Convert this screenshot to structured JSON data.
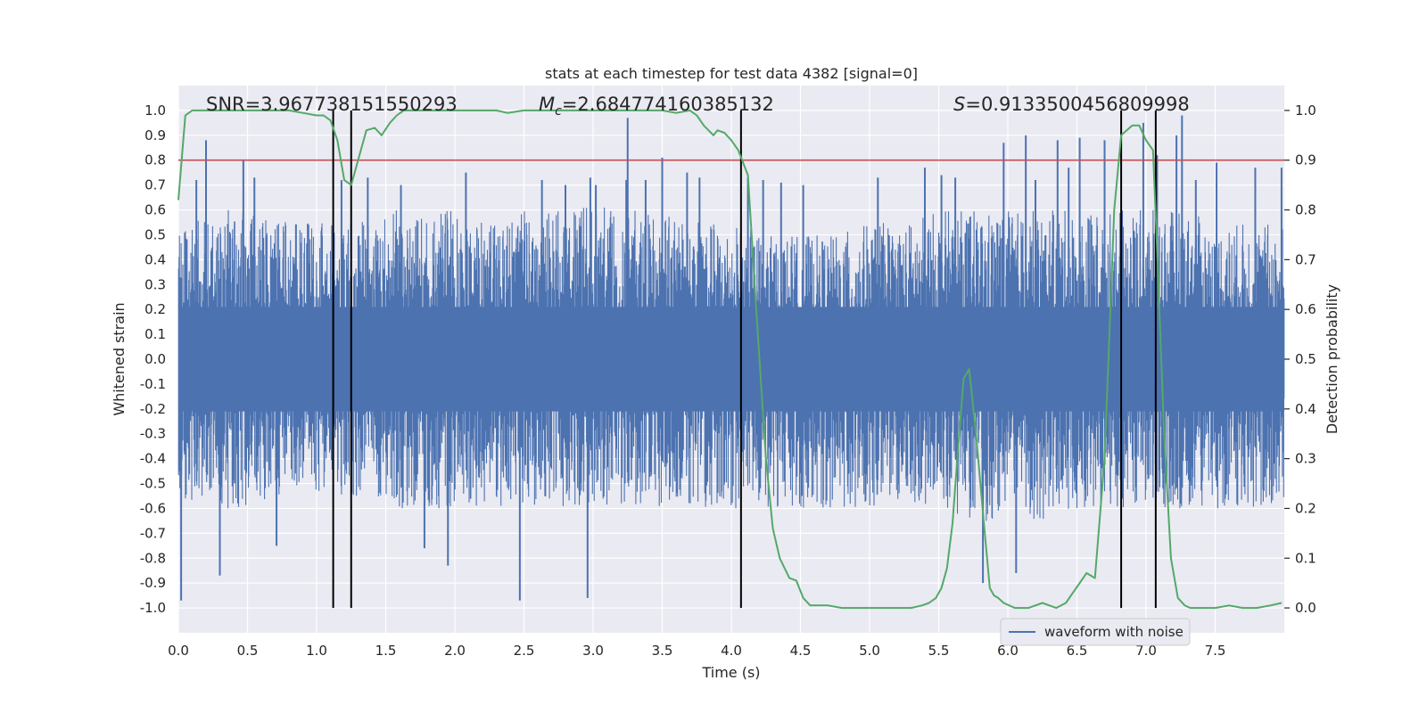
{
  "chart_data": {
    "type": "line",
    "title": "stats at each timestep for test data 4382 [signal=0]",
    "xlabel": "Time (s)",
    "ylabel": "Whitened strain",
    "y2label": "Detection probability",
    "xlim": [
      0.0,
      8.0
    ],
    "ylim": [
      -1.1,
      1.1
    ],
    "y2lim": [
      -0.05,
      1.05
    ],
    "x_ticks": [
      0.0,
      0.5,
      1.0,
      1.5,
      2.0,
      2.5,
      3.0,
      3.5,
      4.0,
      4.5,
      5.0,
      5.5,
      6.0,
      6.5,
      7.0,
      7.5
    ],
    "x_tick_labels": [
      "0.0",
      "0.5",
      "1.0",
      "1.5",
      "2.0",
      "2.5",
      "3.0",
      "3.5",
      "4.0",
      "4.5",
      "5.0",
      "5.5",
      "6.0",
      "6.5",
      "7.0",
      "7.5"
    ],
    "y_ticks": [
      -1.0,
      -0.9,
      -0.8,
      -0.7,
      -0.6,
      -0.5,
      -0.4,
      -0.3,
      -0.2,
      -0.1,
      0.0,
      0.1,
      0.2,
      0.3,
      0.4,
      0.5,
      0.6,
      0.7,
      0.8,
      0.9,
      1.0
    ],
    "y_tick_labels": [
      "-1.0",
      "-0.9",
      "-0.8",
      "-0.7",
      "-0.6",
      "-0.5",
      "-0.4",
      "-0.3",
      "-0.2",
      "-0.1",
      "0.0",
      "0.1",
      "0.2",
      "0.3",
      "0.4",
      "0.5",
      "0.6",
      "0.7",
      "0.8",
      "0.9",
      "1.0"
    ],
    "y2_ticks": [
      0.0,
      0.1,
      0.2,
      0.3,
      0.4,
      0.5,
      0.6,
      0.7,
      0.8,
      0.9,
      1.0
    ],
    "y2_tick_labels": [
      "0.0",
      "0.1",
      "0.2",
      "0.3",
      "0.4",
      "0.5",
      "0.6",
      "0.7",
      "0.8",
      "0.9",
      "1.0"
    ],
    "grid": true,
    "annotations": {
      "snr": "SNR=3.967738151550293",
      "mc_symbol": "M",
      "mc_sub": "c",
      "mc_value": "=2.684774160385132",
      "s_symbol": "S",
      "s_value": "=0.9133500456809998"
    },
    "threshold": {
      "value": 0.9,
      "axis": "right",
      "color": "#c44e52"
    },
    "vertical_lines": [
      1.12,
      1.25,
      4.07,
      6.82,
      7.07
    ],
    "legend": {
      "placement": "lower-right",
      "entries": [
        "waveform with noise"
      ]
    },
    "colors": {
      "strain": "#4c72b0",
      "probability": "#55a868",
      "threshold": "#c44e52",
      "vlines": "#000000",
      "axes_bg": "#eaeaf2"
    },
    "series": [
      {
        "name": "waveform with noise",
        "axis": "left",
        "kind": "dense-noise",
        "core_amplitude": 0.21,
        "envelope_pos": [
          [
            0.0,
            0.5
          ],
          [
            0.25,
            0.6
          ],
          [
            0.5,
            0.6
          ],
          [
            0.75,
            0.55
          ],
          [
            1.0,
            0.56
          ],
          [
            1.25,
            0.55
          ],
          [
            1.5,
            0.6
          ],
          [
            1.75,
            0.6
          ],
          [
            2.0,
            0.6
          ],
          [
            2.25,
            0.55
          ],
          [
            2.5,
            0.6
          ],
          [
            2.75,
            0.6
          ],
          [
            3.0,
            0.62
          ],
          [
            3.25,
            0.6
          ],
          [
            3.5,
            0.6
          ],
          [
            3.75,
            0.55
          ],
          [
            4.0,
            0.55
          ],
          [
            4.25,
            0.5
          ],
          [
            4.5,
            0.5
          ],
          [
            4.75,
            0.5
          ],
          [
            5.0,
            0.55
          ],
          [
            5.25,
            0.55
          ],
          [
            5.5,
            0.6
          ],
          [
            5.75,
            0.6
          ],
          [
            6.0,
            0.6
          ],
          [
            6.25,
            0.6
          ],
          [
            6.5,
            0.6
          ],
          [
            6.75,
            0.6
          ],
          [
            7.0,
            0.6
          ],
          [
            7.25,
            0.6
          ],
          [
            7.5,
            0.55
          ],
          [
            7.75,
            0.55
          ],
          [
            8.0,
            0.55
          ]
        ],
        "envelope_neg": [
          [
            0.0,
            -0.55
          ],
          [
            0.25,
            -0.6
          ],
          [
            0.5,
            -0.6
          ],
          [
            0.75,
            -0.55
          ],
          [
            1.0,
            -0.55
          ],
          [
            1.25,
            -0.55
          ],
          [
            1.5,
            -0.6
          ],
          [
            1.75,
            -0.6
          ],
          [
            2.0,
            -0.6
          ],
          [
            2.25,
            -0.6
          ],
          [
            2.5,
            -0.6
          ],
          [
            2.75,
            -0.6
          ],
          [
            3.0,
            -0.6
          ],
          [
            3.25,
            -0.6
          ],
          [
            3.5,
            -0.6
          ],
          [
            3.75,
            -0.6
          ],
          [
            4.0,
            -0.6
          ],
          [
            4.25,
            -0.6
          ],
          [
            4.5,
            -0.6
          ],
          [
            4.75,
            -0.6
          ],
          [
            5.0,
            -0.6
          ],
          [
            5.25,
            -0.6
          ],
          [
            5.5,
            -0.6
          ],
          [
            5.75,
            -0.65
          ],
          [
            6.0,
            -0.65
          ],
          [
            6.25,
            -0.65
          ],
          [
            6.5,
            -0.6
          ],
          [
            6.75,
            -0.6
          ],
          [
            7.0,
            -0.6
          ],
          [
            7.25,
            -0.6
          ],
          [
            7.5,
            -0.6
          ],
          [
            7.75,
            -0.6
          ],
          [
            8.0,
            -0.6
          ]
        ],
        "spikes": [
          [
            0.02,
            -0.97
          ],
          [
            0.13,
            0.72
          ],
          [
            0.2,
            0.88
          ],
          [
            0.3,
            -0.87
          ],
          [
            0.47,
            0.8
          ],
          [
            0.55,
            0.73
          ],
          [
            0.71,
            -0.75
          ],
          [
            1.18,
            0.72
          ],
          [
            1.37,
            0.73
          ],
          [
            1.61,
            0.7
          ],
          [
            1.78,
            -0.76
          ],
          [
            1.95,
            -0.83
          ],
          [
            2.08,
            0.75
          ],
          [
            2.47,
            -0.97
          ],
          [
            2.63,
            0.72
          ],
          [
            2.8,
            0.7
          ],
          [
            2.96,
            -0.96
          ],
          [
            2.98,
            0.73
          ],
          [
            3.02,
            0.7
          ],
          [
            3.24,
            0.72
          ],
          [
            3.25,
            0.97
          ],
          [
            3.38,
            0.72
          ],
          [
            3.5,
            0.81
          ],
          [
            3.68,
            0.75
          ],
          [
            3.77,
            0.73
          ],
          [
            4.12,
            0.73
          ],
          [
            4.23,
            0.72
          ],
          [
            4.36,
            0.71
          ],
          [
            4.52,
            0.7
          ],
          [
            5.06,
            0.73
          ],
          [
            5.4,
            0.77
          ],
          [
            5.52,
            0.74
          ],
          [
            5.62,
            0.73
          ],
          [
            5.82,
            -0.9
          ],
          [
            5.97,
            0.87
          ],
          [
            6.06,
            -0.86
          ],
          [
            6.13,
            0.9
          ],
          [
            6.2,
            0.72
          ],
          [
            6.36,
            0.88
          ],
          [
            6.44,
            0.77
          ],
          [
            6.52,
            0.89
          ],
          [
            6.7,
            0.88
          ],
          [
            6.98,
            0.95
          ],
          [
            7.08,
            0.82
          ],
          [
            7.22,
            0.9
          ],
          [
            7.26,
            0.98
          ],
          [
            7.36,
            0.72
          ],
          [
            7.51,
            0.79
          ],
          [
            7.79,
            0.77
          ],
          [
            7.98,
            0.77
          ]
        ]
      },
      {
        "name": "",
        "axis": "right",
        "kind": "line",
        "x": [
          0.0,
          0.05,
          0.1,
          0.2,
          0.4,
          0.6,
          0.8,
          0.9,
          1.0,
          1.05,
          1.1,
          1.15,
          1.2,
          1.25,
          1.3,
          1.36,
          1.42,
          1.47,
          1.53,
          1.58,
          1.63,
          1.7,
          1.9,
          2.1,
          2.3,
          2.38,
          2.5,
          2.7,
          2.9,
          3.1,
          3.3,
          3.5,
          3.6,
          3.7,
          3.75,
          3.8,
          3.87,
          3.9,
          3.95,
          4.0,
          4.05,
          4.12,
          4.18,
          4.25,
          4.3,
          4.35,
          4.42,
          4.47,
          4.52,
          4.57,
          4.62,
          4.7,
          4.8,
          4.9,
          5.0,
          5.1,
          5.2,
          5.3,
          5.38,
          5.43,
          5.48,
          5.52,
          5.56,
          5.6,
          5.64,
          5.68,
          5.72,
          5.77,
          5.83,
          5.87,
          5.9,
          5.93,
          5.97,
          6.05,
          6.15,
          6.25,
          6.3,
          6.35,
          6.42,
          6.47,
          6.52,
          6.57,
          6.63,
          6.7,
          6.77,
          6.82,
          6.86,
          6.9,
          6.95,
          7.0,
          7.05,
          7.08,
          7.13,
          7.18,
          7.23,
          7.28,
          7.32,
          7.4,
          7.5,
          7.6,
          7.7,
          7.8,
          7.9,
          7.98
        ],
        "values": [
          0.82,
          0.99,
          1.0,
          1.0,
          1.0,
          1.0,
          1.0,
          0.995,
          0.99,
          0.99,
          0.98,
          0.94,
          0.86,
          0.85,
          0.9,
          0.96,
          0.965,
          0.95,
          0.975,
          0.99,
          1.0,
          1.0,
          1.0,
          1.0,
          1.0,
          0.995,
          1.0,
          1.0,
          1.0,
          1.0,
          1.0,
          1.0,
          0.995,
          1.0,
          0.99,
          0.97,
          0.95,
          0.96,
          0.955,
          0.94,
          0.92,
          0.87,
          0.6,
          0.3,
          0.16,
          0.1,
          0.06,
          0.055,
          0.02,
          0.005,
          0.005,
          0.005,
          0.0,
          0.0,
          0.0,
          0.0,
          0.0,
          0.0,
          0.005,
          0.01,
          0.02,
          0.04,
          0.08,
          0.17,
          0.32,
          0.46,
          0.48,
          0.35,
          0.16,
          0.04,
          0.025,
          0.02,
          0.01,
          0.0,
          0.0,
          0.01,
          0.005,
          0.0,
          0.01,
          0.03,
          0.05,
          0.07,
          0.06,
          0.3,
          0.8,
          0.95,
          0.96,
          0.97,
          0.97,
          0.94,
          0.92,
          0.72,
          0.35,
          0.1,
          0.02,
          0.005,
          0.0,
          0.0,
          0.0,
          0.005,
          0.0,
          0.0,
          0.005,
          0.01
        ]
      }
    ]
  }
}
